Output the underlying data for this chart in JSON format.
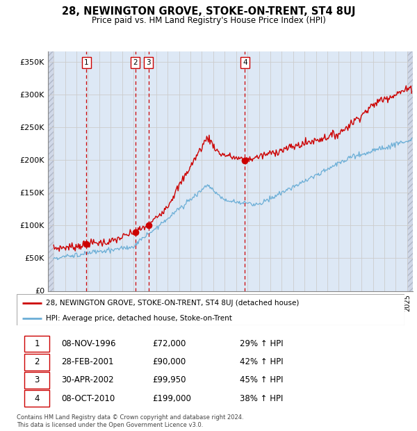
{
  "title": "28, NEWINGTON GROVE, STOKE-ON-TRENT, ST4 8UJ",
  "subtitle": "Price paid vs. HM Land Registry's House Price Index (HPI)",
  "ylabel_ticks": [
    "£0",
    "£50K",
    "£100K",
    "£150K",
    "£200K",
    "£250K",
    "£300K",
    "£350K"
  ],
  "ytick_vals": [
    0,
    50000,
    100000,
    150000,
    200000,
    250000,
    300000,
    350000
  ],
  "ylim": [
    0,
    365000
  ],
  "xlim_start": 1993.5,
  "xlim_end": 2025.5,
  "transactions": [
    {
      "num": 1,
      "date": "08-NOV-1996",
      "year": 1996.86,
      "price": 72000,
      "pct": "29%"
    },
    {
      "num": 2,
      "date": "28-FEB-2001",
      "year": 2001.16,
      "price": 90000,
      "pct": "42%"
    },
    {
      "num": 3,
      "date": "30-APR-2002",
      "year": 2002.33,
      "price": 99950,
      "pct": "45%"
    },
    {
      "num": 4,
      "date": "08-OCT-2010",
      "year": 2010.77,
      "price": 199000,
      "pct": "38%"
    }
  ],
  "legend_entries": [
    "28, NEWINGTON GROVE, STOKE-ON-TRENT, ST4 8UJ (detached house)",
    "HPI: Average price, detached house, Stoke-on-Trent"
  ],
  "table_rows": [
    [
      "1",
      "08-NOV-1996",
      "£72,000",
      "29% ↑ HPI"
    ],
    [
      "2",
      "28-FEB-2001",
      "£90,000",
      "42% ↑ HPI"
    ],
    [
      "3",
      "30-APR-2002",
      "£99,950",
      "45% ↑ HPI"
    ],
    [
      "4",
      "08-OCT-2010",
      "£199,000",
      "38% ↑ HPI"
    ]
  ],
  "footer": "Contains HM Land Registry data © Crown copyright and database right 2024.\nThis data is licensed under the Open Government Licence v3.0.",
  "hpi_color": "#6baed6",
  "price_color": "#cc0000",
  "vline_color": "#cc0000",
  "grid_color": "#cccccc",
  "bg_color": "#dde8f5"
}
